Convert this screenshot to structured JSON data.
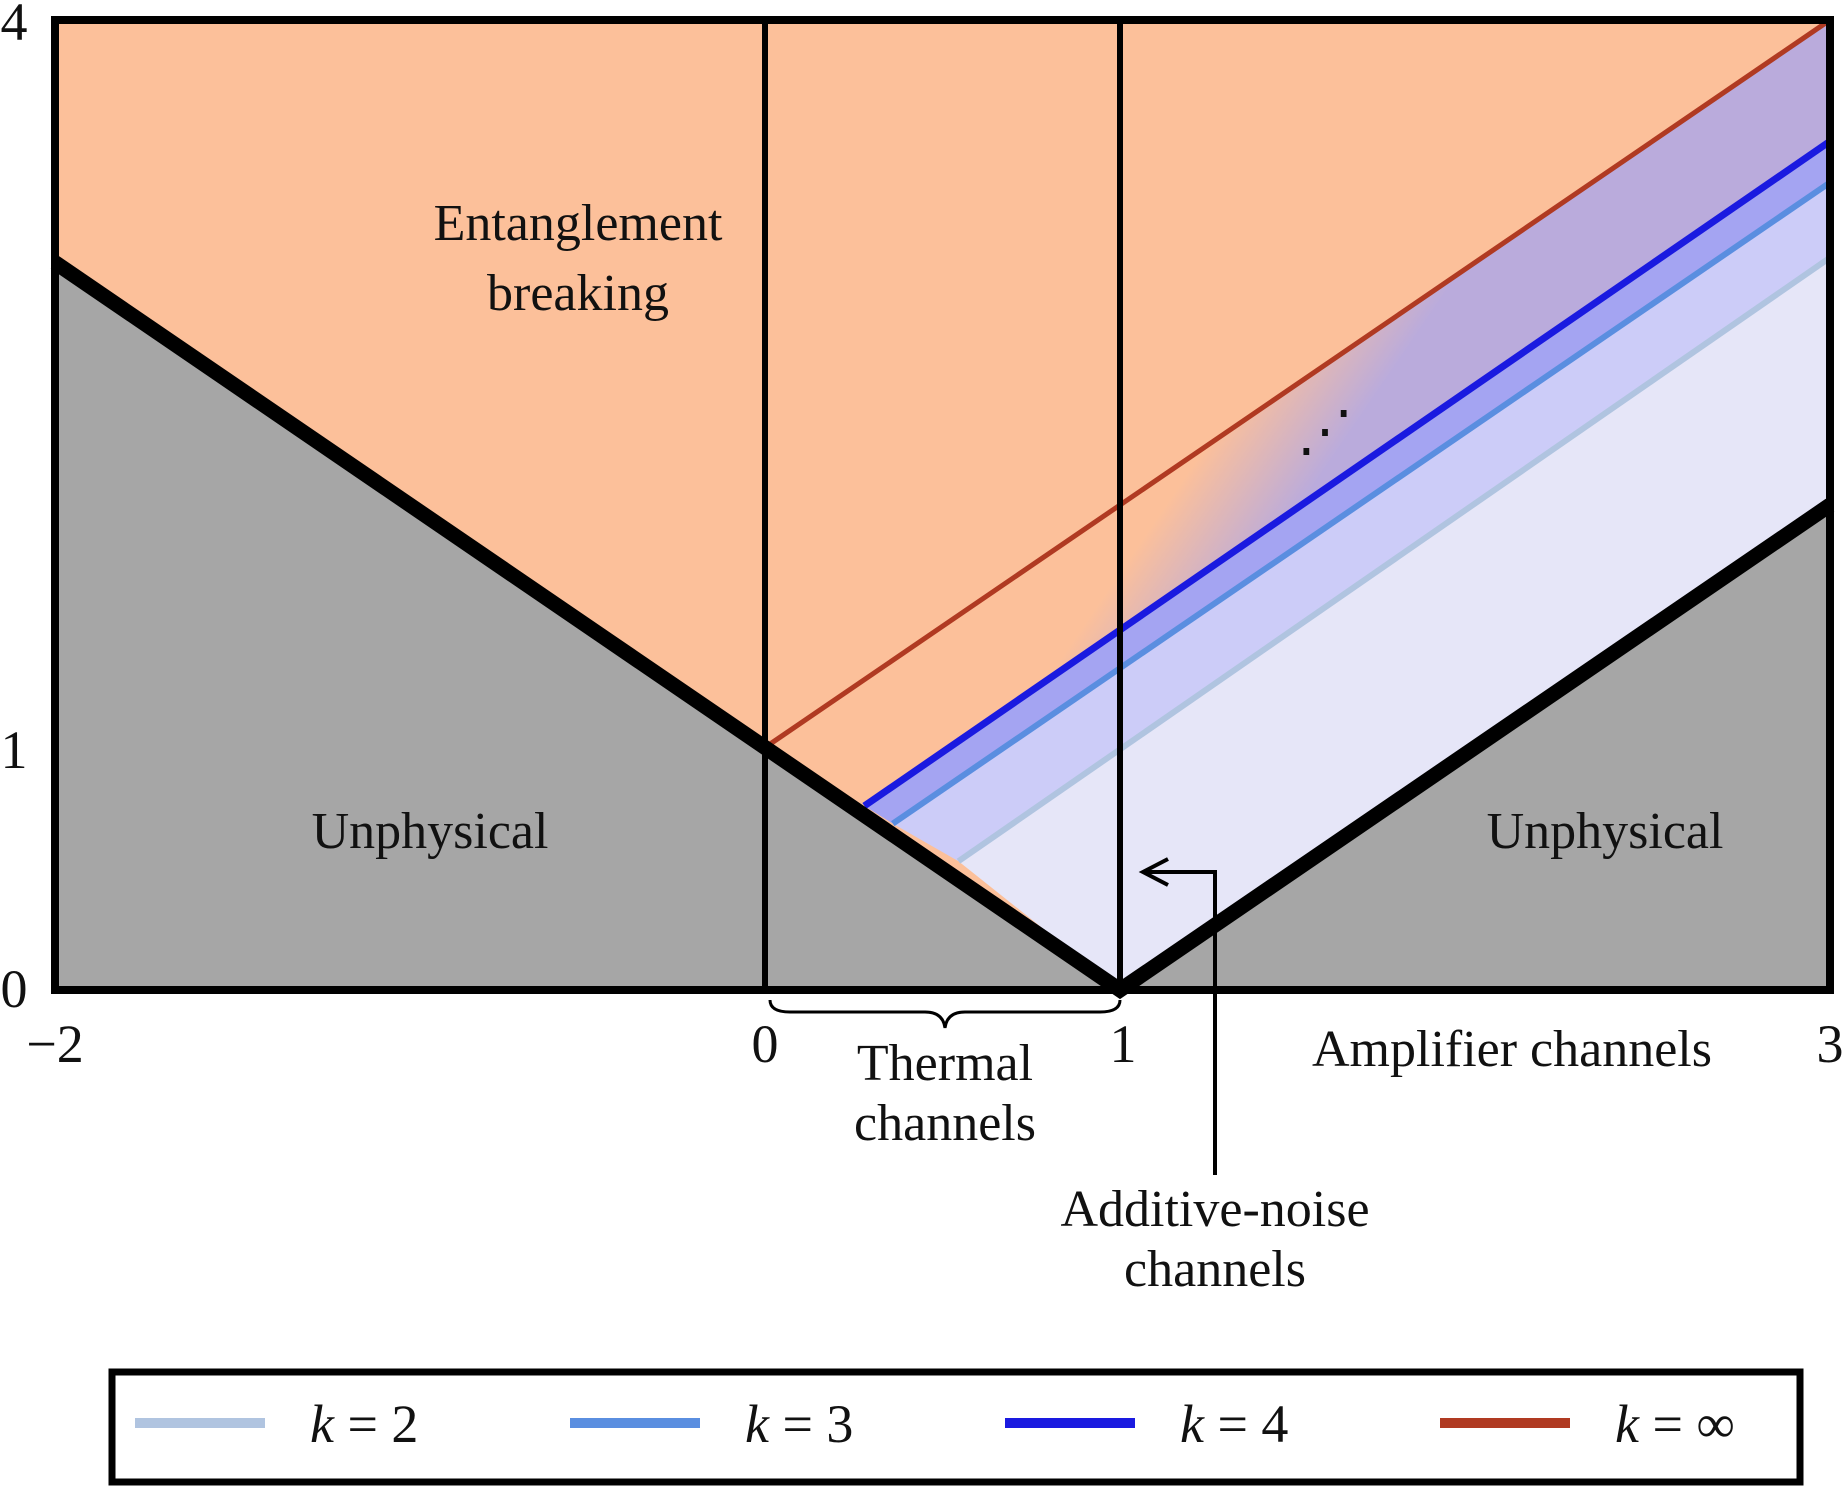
{
  "chart_data": {
    "type": "area",
    "xlim": [
      -2,
      3
    ],
    "ylim": [
      0,
      4
    ],
    "x_ticks": [
      "−2",
      "0",
      "1",
      "3"
    ],
    "y_ticks": [
      "0",
      "1",
      "4"
    ],
    "grid": false,
    "vertical_lines_x": [
      0,
      1
    ],
    "regions": {
      "unphysical_left": "Unphysical",
      "unphysical_right": "Unphysical",
      "entanglement_breaking": [
        "Entanglement",
        "breaking"
      ]
    },
    "annotations": {
      "thermal": [
        "Thermal",
        "channels"
      ],
      "amplifier": "Amplifier channels",
      "additive": [
        "Additive-noise",
        "channels"
      ],
      "dots": "⋰"
    },
    "physical_boundary": [
      {
        "x": -2,
        "y": 3
      },
      {
        "x": 1,
        "y": 0
      },
      {
        "x": 3,
        "y": 2
      }
    ],
    "series": [
      {
        "name": "k = 2",
        "color": "#b0c4e0",
        "x": [
          0.545,
          3
        ],
        "y": [
          0.531,
          3.02
        ]
      },
      {
        "name": "k = 3",
        "color": "#5a8ee0",
        "x": [
          0.36,
          3
        ],
        "y": [
          0.686,
          3.33
        ]
      },
      {
        "name": "k = 4",
        "color": "#1a1ae0",
        "x": [
          0.28,
          3
        ],
        "y": [
          0.759,
          3.5
        ]
      },
      {
        "name": "k = ∞",
        "color": "#b03a22",
        "x": [
          0,
          3
        ],
        "y": [
          1,
          4
        ]
      }
    ],
    "legend": {
      "position": "bottom",
      "entries": [
        {
          "var": "k",
          "rest": " = 2",
          "color": "#b0c4e0"
        },
        {
          "var": "k",
          "rest": " = 3",
          "color": "#5a8ee0"
        },
        {
          "var": "k",
          "rest": " = 4",
          "color": "#1a1ae0"
        },
        {
          "var": "k",
          "rest": " = ∞",
          "color": "#b03a22"
        }
      ]
    },
    "colors": {
      "entanglement_breaking": "#fcc09a",
      "unphysical": "#a6a6a6",
      "band_light": "#e6e6f8",
      "band_mid": "#ccccf8",
      "band_dark": "#a4a4f2"
    }
  }
}
